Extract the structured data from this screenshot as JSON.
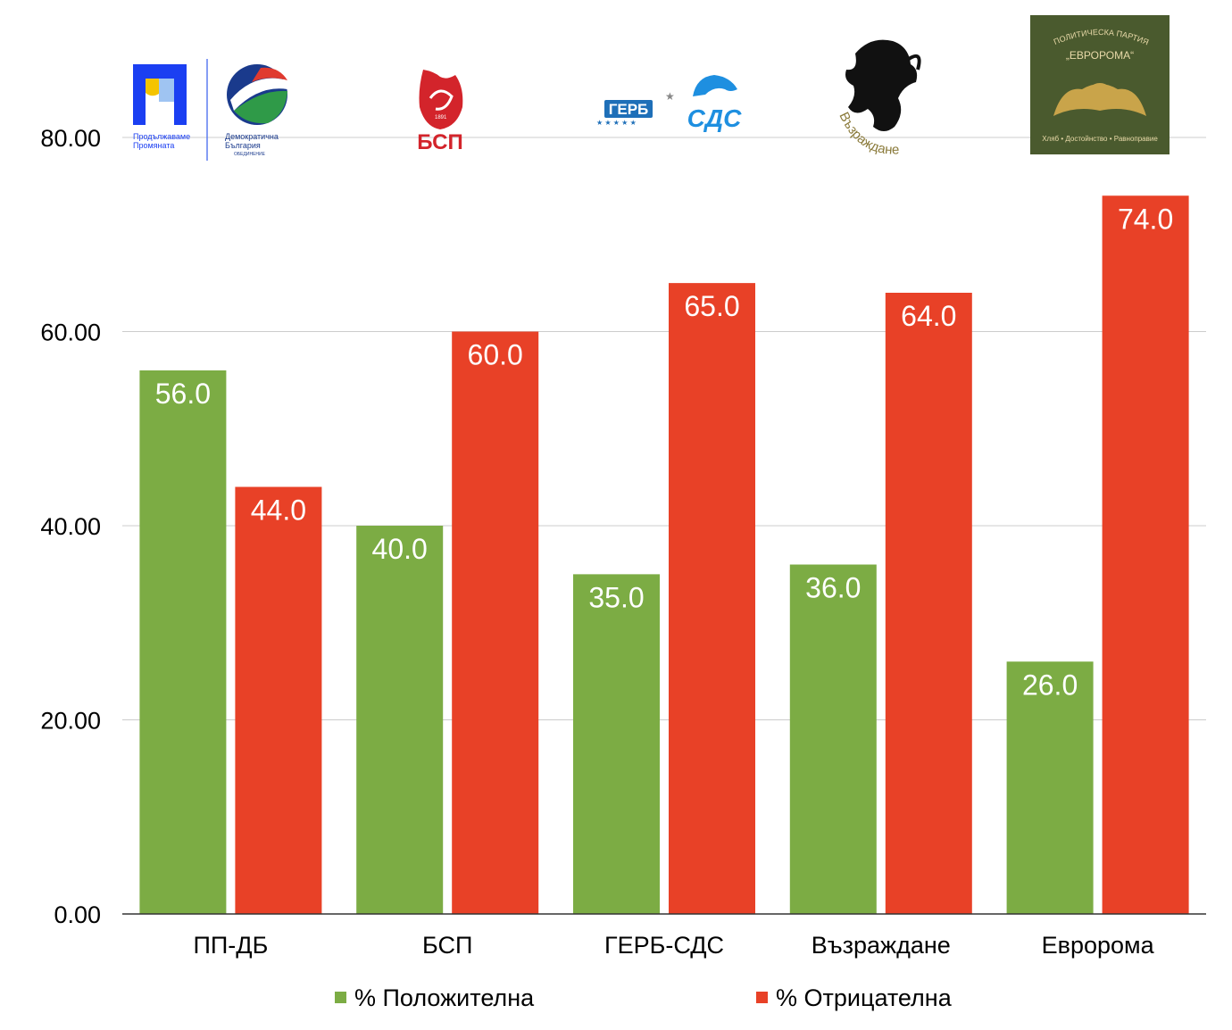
{
  "chart_data": {
    "type": "bar",
    "categories": [
      "ПП-ДБ",
      "БСП",
      "ГЕРБ-СДС",
      "Възраждане",
      "Евророма"
    ],
    "series": [
      {
        "name": "% Положителна",
        "values": [
          56.0,
          40.0,
          35.0,
          36.0,
          26.0
        ],
        "color": "#7cac44"
      },
      {
        "name": "% Отрицателна",
        "values": [
          44.0,
          60.0,
          65.0,
          64.0,
          74.0
        ],
        "color": "#e84127"
      }
    ],
    "ylim": [
      0,
      80
    ],
    "yticks": [
      "0.00",
      "20.00",
      "40.00",
      "60.00",
      "80.00"
    ],
    "yticks_values": [
      0,
      20,
      40,
      60,
      80
    ],
    "grid": true,
    "legend": "bottom",
    "value_decimals": 1
  },
  "logos": {
    "ppdb": {
      "icon": "pp-db-logo",
      "text1": "Продължаваме",
      "text2": "Промяната",
      "text3": "Демократична",
      "text4": "България",
      "text5": "ОБЕДИНЕНИЕ"
    },
    "bsp": {
      "icon": "bsp-rose-logo",
      "text": "БСП",
      "year": "1891"
    },
    "gerb": {
      "icon": "gerb-sds-logo",
      "text1": "ГЕРБ",
      "text2": "СДС"
    },
    "vaz": {
      "icon": "vazrazhdane-lion-logo",
      "text": "Възраждане"
    },
    "evr": {
      "icon": "evroroma-logo",
      "text1": "ПОЛИТИЧЕСКА ПАРТИЯ",
      "text2": "„ЕВРОРОМА“",
      "text3": "Хляб • Достойнство • Равноправие"
    }
  }
}
